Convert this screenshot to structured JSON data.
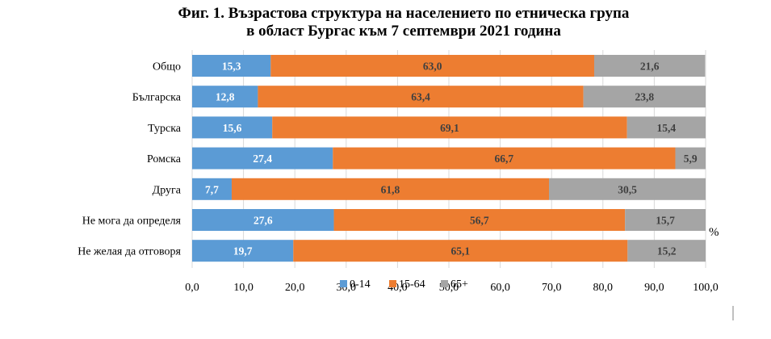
{
  "chart_data": {
    "type": "bar",
    "orientation": "horizontal",
    "stacked": true,
    "title_lines": [
      "Фиг. 1. Възрастова структура на населението по етническа група",
      "в област Бургас към 7 септември 2021 година"
    ],
    "categories": [
      "Общо",
      "Българска",
      "Турска",
      "Ромска",
      "Друга",
      "Не мога да определя",
      "Не желая да отговоря"
    ],
    "series": [
      {
        "name": "0-14",
        "color": "#5B9BD5",
        "label_color": "#ffffff",
        "values": [
          15.3,
          12.8,
          15.6,
          27.4,
          7.7,
          27.6,
          19.7
        ],
        "labels": [
          "15,3",
          "12,8",
          "15,6",
          "27,4",
          "7,7",
          "27,6",
          "19,7"
        ]
      },
      {
        "name": "15-64",
        "color": "#ED7D31",
        "label_color": "#404040",
        "values": [
          63.0,
          63.4,
          69.1,
          66.7,
          61.8,
          56.7,
          65.1
        ],
        "labels": [
          "63,0",
          "63,4",
          "69,1",
          "66,7",
          "61,8",
          "56,7",
          "65,1"
        ]
      },
      {
        "name": "65+",
        "color": "#A5A5A5",
        "label_color": "#404040",
        "values": [
          21.6,
          23.8,
          15.4,
          5.9,
          30.5,
          15.7,
          15.2
        ],
        "labels": [
          "21,6",
          "23,8",
          "15,4",
          "5,9",
          "30,5",
          "15,7",
          "15,2"
        ]
      }
    ],
    "xlim": [
      0,
      100
    ],
    "xticks": [
      0,
      10,
      20,
      30,
      40,
      50,
      60,
      70,
      80,
      90,
      100
    ],
    "xtick_labels": [
      "0,0",
      "10,0",
      "20,0",
      "30,0",
      "40,0",
      "50,0",
      "60,0",
      "70,0",
      "80,0",
      "90,0",
      "100,0"
    ],
    "unit": "%",
    "grid": "vertical",
    "legend_position": "bottom"
  }
}
